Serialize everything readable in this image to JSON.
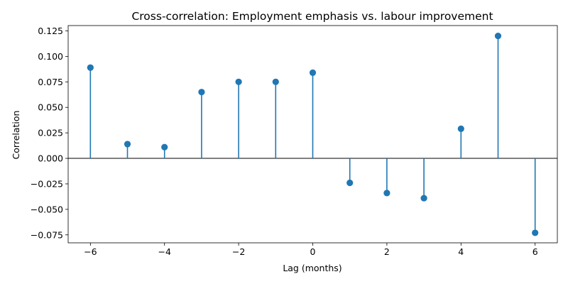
{
  "chart_data": {
    "type": "stem",
    "title": "Cross-correlation: Employment emphasis vs. labour improvement",
    "xlabel": "Lag (months)",
    "ylabel": "Correlation",
    "x": [
      -6,
      -5,
      -4,
      -3,
      -2,
      -1,
      0,
      1,
      2,
      3,
      4,
      5,
      6
    ],
    "values": [
      0.089,
      0.014,
      0.011,
      0.065,
      0.075,
      0.075,
      0.084,
      -0.024,
      -0.034,
      -0.039,
      0.029,
      0.12,
      -0.073
    ],
    "xlim": [
      -6.6,
      6.6
    ],
    "ylim": [
      -0.0828,
      0.1302
    ],
    "xticks": [
      -6,
      -4,
      -2,
      0,
      2,
      4,
      6
    ],
    "xtick_labels": [
      "−6",
      "−4",
      "−2",
      "0",
      "2",
      "4",
      "6"
    ],
    "yticks": [
      -0.075,
      -0.05,
      -0.025,
      0.0,
      0.025,
      0.05,
      0.075,
      0.1,
      0.125
    ],
    "ytick_labels": [
      "−0.075",
      "−0.050",
      "−0.025",
      "0.000",
      "0.025",
      "0.050",
      "0.075",
      "0.100",
      "0.125"
    ],
    "baseline": 0,
    "grid": false,
    "colors": {
      "stem": "#1f77b4",
      "baseline": "#000000",
      "axes": "#000000"
    }
  }
}
